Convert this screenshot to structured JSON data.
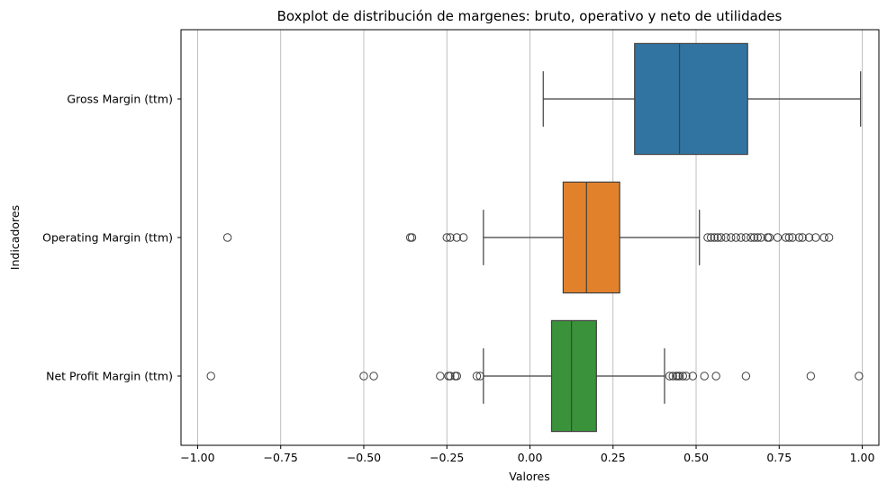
{
  "chart_data": {
    "type": "boxplot",
    "orientation": "horizontal",
    "title": "Boxplot de distribución de margenes: bruto, operativo y neto de utilidades",
    "xlabel": "Valores",
    "ylabel": "Indicadores",
    "xlim": [
      -1.05,
      1.05
    ],
    "xticks": [
      -1.0,
      -0.75,
      -0.5,
      -0.25,
      0.0,
      0.25,
      0.5,
      0.75,
      1.0
    ],
    "xtick_labels": [
      "−1.00",
      "−0.75",
      "−0.50",
      "−0.25",
      "0.00",
      "0.25",
      "0.50",
      "0.75",
      "1.00"
    ],
    "grid": "vertical",
    "categories": [
      "Gross Margin (ttm)",
      "Operating Margin (ttm)",
      "Net Profit Margin (ttm)"
    ],
    "series": [
      {
        "name": "Gross Margin (ttm)",
        "color": "#3274a1",
        "whisker_low": 0.04,
        "q1": 0.315,
        "median": 0.45,
        "q3": 0.655,
        "whisker_high": 0.995,
        "outliers": []
      },
      {
        "name": "Operating Margin (ttm)",
        "color": "#e1812c",
        "whisker_low": -0.14,
        "q1": 0.1,
        "median": 0.17,
        "q3": 0.27,
        "whisker_high": 0.51,
        "outliers": [
          -0.91,
          -0.36,
          -0.355,
          -0.25,
          -0.24,
          -0.22,
          -0.2,
          0.535,
          0.545,
          0.555,
          0.565,
          0.575,
          0.59,
          0.605,
          0.62,
          0.635,
          0.65,
          0.665,
          0.675,
          0.685,
          0.695,
          0.715,
          0.72,
          0.745,
          0.77,
          0.78,
          0.79,
          0.81,
          0.82,
          0.84,
          0.86,
          0.885,
          0.9
        ]
      },
      {
        "name": "Net Profit Margin (ttm)",
        "color": "#3a923a",
        "whisker_low": -0.14,
        "q1": 0.065,
        "median": 0.125,
        "q3": 0.2,
        "whisker_high": 0.405,
        "outliers": [
          -0.96,
          -0.5,
          -0.47,
          -0.27,
          -0.245,
          -0.24,
          -0.225,
          -0.22,
          -0.16,
          -0.15,
          0.42,
          0.43,
          0.44,
          0.445,
          0.45,
          0.46,
          0.47,
          0.49,
          0.525,
          0.56,
          0.65,
          0.845,
          0.99
        ]
      }
    ]
  }
}
